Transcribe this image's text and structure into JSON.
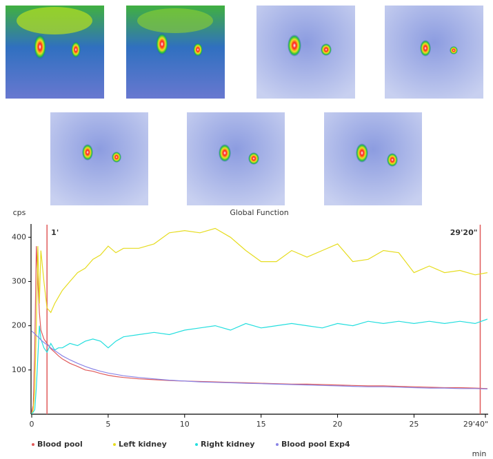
{
  "chart_data": {
    "type": "line",
    "title": "Global Function",
    "y_label": "cps",
    "x_label": "min",
    "x": [
      0,
      0.1,
      0.2,
      0.3,
      0.4,
      0.5,
      0.6,
      0.8,
      1,
      1.25,
      1.5,
      1.75,
      2,
      2.5,
      3,
      3.5,
      4,
      4.5,
      5,
      5.5,
      6,
      7,
      8,
      9,
      10,
      11,
      12,
      13,
      14,
      15,
      16,
      17,
      18,
      19,
      20,
      21,
      22,
      23,
      24,
      25,
      26,
      27,
      28,
      29,
      29.8
    ],
    "series": [
      {
        "name": "Blood pool",
        "color": "#e05a5a",
        "values": [
          5,
          20,
          150,
          380,
          300,
          230,
          190,
          170,
          160,
          148,
          140,
          132,
          125,
          115,
          108,
          100,
          97,
          92,
          88,
          85,
          83,
          80,
          78,
          76,
          75,
          74,
          73,
          72,
          71,
          70,
          69,
          68,
          68,
          67,
          66,
          65,
          64,
          64,
          63,
          62,
          61,
          60,
          60,
          59,
          58
        ]
      },
      {
        "name": "Left kidney",
        "color": "#e6dc1e",
        "values": [
          0,
          10,
          50,
          200,
          380,
          250,
          370,
          300,
          240,
          230,
          250,
          265,
          280,
          300,
          320,
          330,
          350,
          360,
          380,
          365,
          375,
          375,
          385,
          410,
          415,
          410,
          420,
          400,
          370,
          345,
          345,
          370,
          355,
          370,
          385,
          345,
          350,
          370,
          365,
          320,
          335,
          320,
          325,
          315,
          320
        ]
      },
      {
        "name": "Right kidney",
        "color": "#22dede",
        "values": [
          0,
          5,
          10,
          60,
          130,
          200,
          170,
          150,
          140,
          160,
          145,
          150,
          150,
          160,
          155,
          165,
          170,
          165,
          150,
          165,
          175,
          180,
          185,
          180,
          190,
          195,
          200,
          190,
          205,
          195,
          200,
          205,
          200,
          195,
          205,
          200,
          210,
          205,
          210,
          205,
          210,
          205,
          210,
          205,
          215
        ]
      },
      {
        "name": "Blood pool Exp4",
        "color": "#8a84e6",
        "values": [
          188,
          185,
          182,
          178,
          175,
          172,
          168,
          162,
          157,
          150,
          144,
          138,
          132,
          123,
          115,
          108,
          102,
          97,
          93,
          90,
          87,
          83,
          80,
          77,
          75,
          73,
          72,
          71,
          70,
          69,
          68,
          67,
          66,
          65,
          64,
          63,
          62,
          62,
          61,
          60,
          59,
          59,
          58,
          58,
          57
        ]
      }
    ],
    "xlim": [
      0,
      29.85
    ],
    "ylim": [
      0,
      430
    ],
    "xticks": [
      0,
      5,
      10,
      15,
      20,
      25,
      {
        "value": 29.67,
        "label": "29'40\""
      }
    ],
    "yticks": [
      100,
      200,
      300,
      400
    ],
    "markers": [
      {
        "value": 1,
        "label": "1'"
      },
      {
        "value": 29.33,
        "label": "29'20\""
      }
    ],
    "marker_color": "#e05a5a"
  }
}
